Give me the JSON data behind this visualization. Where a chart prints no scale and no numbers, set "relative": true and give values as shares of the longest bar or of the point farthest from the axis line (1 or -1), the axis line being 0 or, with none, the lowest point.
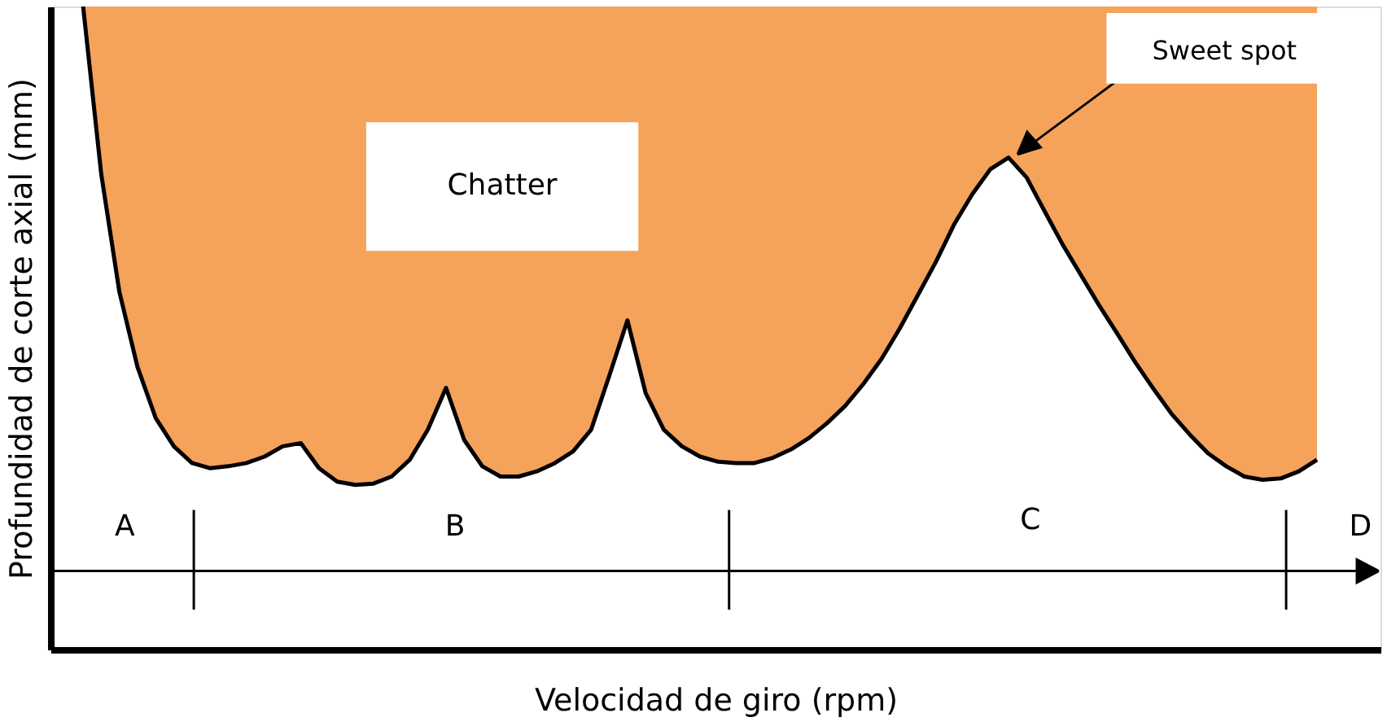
{
  "chart_data": {
    "type": "line",
    "relative": true,
    "xlabel": "Velocidad de giro (rpm)",
    "ylabel": "Profundidad de corte axial (mm)",
    "grid": false,
    "tick_labels": false,
    "categories": [
      null,
      null,
      null,
      null,
      null,
      null,
      null,
      null,
      null,
      null,
      null,
      null,
      null,
      null,
      null,
      null,
      null,
      null,
      null,
      null,
      null,
      null,
      null,
      null,
      null,
      null,
      null,
      null,
      null,
      null,
      null,
      null,
      null,
      null,
      null,
      null,
      null,
      null,
      null,
      null,
      null,
      null,
      null,
      null,
      null,
      null,
      null,
      null,
      null,
      null,
      null,
      null,
      null,
      null,
      null,
      null,
      null,
      null,
      null,
      null,
      null,
      null,
      null,
      null,
      null,
      null,
      null,
      null,
      null
    ],
    "series": [
      {
        "color": "#000000",
        "upper": [
          1,
          1,
          1,
          1,
          1,
          1,
          1,
          1,
          1,
          1,
          1,
          1,
          1,
          1,
          1,
          1,
          1,
          1,
          1,
          1,
          1,
          1,
          1,
          1,
          1,
          1,
          1,
          1,
          1,
          1,
          1,
          1,
          1,
          1,
          1,
          1,
          1,
          1,
          1,
          1,
          1,
          1,
          1,
          1,
          1,
          1,
          1,
          1,
          1,
          1,
          1,
          1,
          1,
          1,
          1,
          1,
          1,
          1,
          1,
          1,
          1,
          1,
          1,
          1,
          1,
          1,
          1,
          1,
          1
        ],
        "lower": [
          1.0,
          0.739,
          0.556,
          0.439,
          0.36,
          0.316,
          0.29,
          0.282,
          0.285,
          0.29,
          0.3,
          0.316,
          0.321,
          0.282,
          0.261,
          0.256,
          0.258,
          0.269,
          0.295,
          0.342,
          0.407,
          0.326,
          0.285,
          0.269,
          0.269,
          0.277,
          0.29,
          0.308,
          0.342,
          0.426,
          0.512,
          0.399,
          0.342,
          0.316,
          0.3,
          0.292,
          0.29,
          0.29,
          0.298,
          0.311,
          0.329,
          0.352,
          0.379,
          0.413,
          0.452,
          0.499,
          0.551,
          0.603,
          0.661,
          0.708,
          0.747,
          0.765,
          0.734,
          0.681,
          0.629,
          0.582,
          0.535,
          0.491,
          0.446,
          0.405,
          0.366,
          0.334,
          0.305,
          0.285,
          0.269,
          0.264,
          0.266,
          0.277,
          0.295
        ],
        "values": [
          1.0,
          0.739,
          0.556,
          0.439,
          0.36,
          0.316,
          0.29,
          0.282,
          0.285,
          0.29,
          0.3,
          0.316,
          0.321,
          0.282,
          0.261,
          0.256,
          0.258,
          0.269,
          0.295,
          0.342,
          0.407,
          0.326,
          0.285,
          0.269,
          0.269,
          0.277,
          0.29,
          0.308,
          0.342,
          0.426,
          0.512,
          0.399,
          0.342,
          0.316,
          0.3,
          0.292,
          0.29,
          0.29,
          0.298,
          0.311,
          0.329,
          0.352,
          0.379,
          0.413,
          0.452,
          0.499,
          0.551,
          0.603,
          0.661,
          0.708,
          0.747,
          0.765,
          0.734,
          0.681,
          0.629,
          0.582,
          0.535,
          0.491,
          0.446,
          0.405,
          0.366,
          0.334,
          0.305,
          0.285,
          0.269,
          0.264,
          0.266,
          0.277,
          0.295
        ]
      }
    ],
    "annotations": [
      "Chatter",
      "Sweet spot",
      "A",
      "B",
      "C",
      "D"
    ]
  }
}
